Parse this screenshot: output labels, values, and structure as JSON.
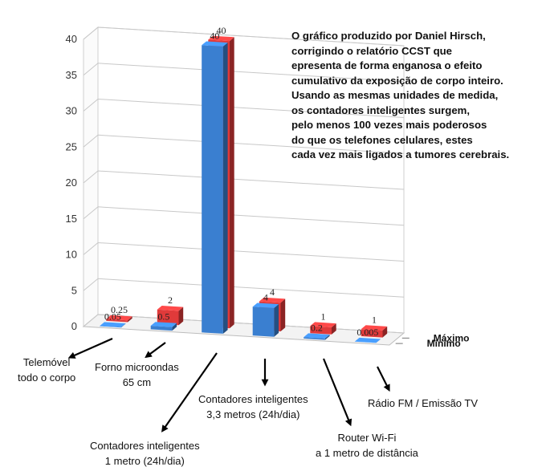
{
  "chart_data": {
    "type": "bar",
    "categories": [
      [
        "Telemóvel",
        "todo o corpo"
      ],
      [
        "Forno microondas",
        "65 cm"
      ],
      [
        "Contadores inteligentes",
        "1 metro (24h/dia)"
      ],
      [
        "Contadores inteligentes",
        "3,3 metros (24h/dia)"
      ],
      [
        "Router Wi-Fi",
        "a 1 metro de distância"
      ],
      [
        "Rádio FM / Emissão TV"
      ]
    ],
    "series": [
      {
        "name": "Mínimo",
        "color": "#3a7fd0",
        "values": [
          0.05,
          0.5,
          40,
          4,
          0.2,
          0.005
        ],
        "labels": [
          "0.05",
          "0.5",
          "40",
          "4",
          "0.2",
          "0.005"
        ]
      },
      {
        "name": "Máximo",
        "color": "#e03a3a",
        "values": [
          0.25,
          2,
          40,
          4,
          1,
          1
        ],
        "labels": [
          "0.25",
          "2",
          "40",
          "4",
          "1",
          "1"
        ]
      }
    ],
    "y_ticks": [
      "0",
      "5",
      "10",
      "15",
      "20",
      "25",
      "30",
      "35",
      "40"
    ],
    "ylim": [
      0,
      40
    ],
    "legend": "series names on right depth axis",
    "gridlines": true
  },
  "annotation": {
    "lines": [
      "O gráfico produzido por Daniel Hirsch,",
      "corrigindo o relatório CCST que",
      "epresenta de forma enganosa o efeito",
      "cumulativo da exposição de corpo inteiro.",
      "Usando as mesmas unidades de medida,",
      "os contadores inteligentes surgem,",
      "pelo menos 100 vezes mais poderosos",
      "do que os telefones celulares, estes",
      "cada vez mais ligados a tumores cerebrais."
    ]
  }
}
